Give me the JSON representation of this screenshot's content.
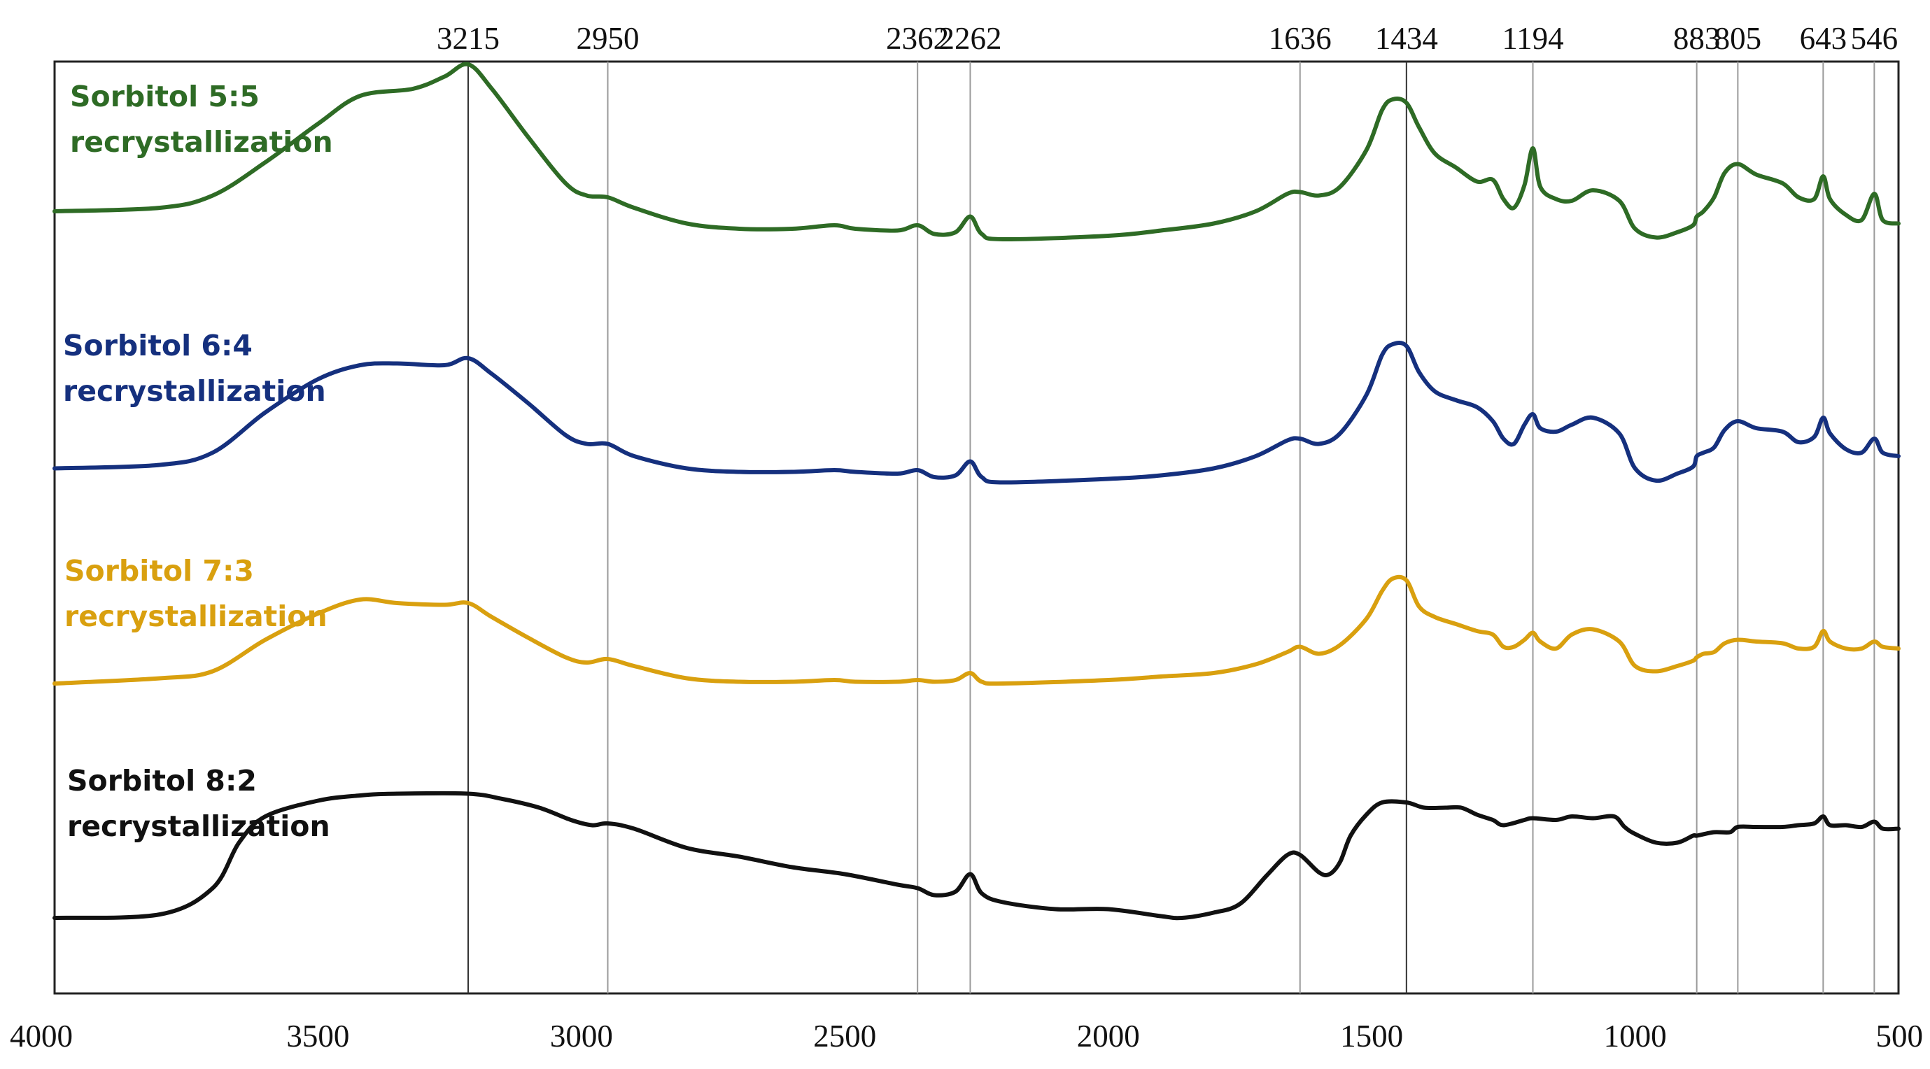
{
  "chart_data": {
    "type": "line",
    "title": "",
    "xlabel": "",
    "ylabel": "",
    "x_reversed": true,
    "xlim": [
      4000,
      500
    ],
    "x_ticks": [
      4000,
      3500,
      3000,
      2500,
      2000,
      1500,
      1000,
      500
    ],
    "y_ticks": [],
    "grid": false,
    "legend": "inline labels at left of each trace",
    "peak_lines": [
      3215,
      2950,
      2362,
      2262,
      1636,
      1434,
      1194,
      883,
      805,
      643,
      546
    ],
    "peak_labels": [
      "3215",
      "2950",
      "2362",
      "2262",
      "1636",
      "1434",
      "1194",
      "883",
      "805",
      "643",
      "546"
    ],
    "series": [
      {
        "name": "Sorbitol 5:5 recrystallization",
        "label_lines": [
          "Sorbitol 5:5",
          "recrystallization"
        ],
        "color": "#2e6b25",
        "points": [
          [
            4000,
            20
          ],
          [
            3800,
            22
          ],
          [
            3700,
            29
          ],
          [
            3600,
            48
          ],
          [
            3500,
            70
          ],
          [
            3420,
            86
          ],
          [
            3320,
            90
          ],
          [
            3260,
            97
          ],
          [
            3215,
            104
          ],
          [
            3170,
            90
          ],
          [
            3100,
            62
          ],
          [
            3030,
            36
          ],
          [
            2990,
            29
          ],
          [
            2950,
            28
          ],
          [
            2900,
            22
          ],
          [
            2800,
            13
          ],
          [
            2700,
            10
          ],
          [
            2600,
            10
          ],
          [
            2520,
            12
          ],
          [
            2480,
            10
          ],
          [
            2400,
            9
          ],
          [
            2362,
            12
          ],
          [
            2330,
            7
          ],
          [
            2290,
            8
          ],
          [
            2262,
            17
          ],
          [
            2240,
            7
          ],
          [
            2200,
            4
          ],
          [
            2000,
            6
          ],
          [
            1900,
            9
          ],
          [
            1800,
            13
          ],
          [
            1720,
            20
          ],
          [
            1660,
            30
          ],
          [
            1636,
            31
          ],
          [
            1600,
            29
          ],
          [
            1560,
            34
          ],
          [
            1510,
            55
          ],
          [
            1480,
            78
          ],
          [
            1460,
            84
          ],
          [
            1434,
            82
          ],
          [
            1410,
            68
          ],
          [
            1380,
            53
          ],
          [
            1340,
            45
          ],
          [
            1300,
            37
          ],
          [
            1270,
            38
          ],
          [
            1250,
            27
          ],
          [
            1230,
            22
          ],
          [
            1210,
            35
          ],
          [
            1194,
            56
          ],
          [
            1180,
            34
          ],
          [
            1150,
            27
          ],
          [
            1120,
            26
          ],
          [
            1080,
            32
          ],
          [
            1030,
            26
          ],
          [
            1000,
            10
          ],
          [
            960,
            5
          ],
          [
            920,
            8
          ],
          [
            890,
            12
          ],
          [
            883,
            17
          ],
          [
            870,
            20
          ],
          [
            850,
            28
          ],
          [
            830,
            42
          ],
          [
            805,
            47
          ],
          [
            770,
            41
          ],
          [
            720,
            36
          ],
          [
            690,
            28
          ],
          [
            660,
            27
          ],
          [
            643,
            40
          ],
          [
            630,
            27
          ],
          [
            600,
            18
          ],
          [
            570,
            15
          ],
          [
            546,
            30
          ],
          [
            530,
            15
          ],
          [
            500,
            13
          ]
        ]
      },
      {
        "name": "Sorbitol 6:4 recrystallization",
        "label_lines": [
          "Sorbitol 6:4",
          "recrystallization"
        ],
        "color": "#15307e",
        "points": [
          [
            4000,
            13
          ],
          [
            3800,
            15
          ],
          [
            3700,
            22
          ],
          [
            3600,
            45
          ],
          [
            3500,
            64
          ],
          [
            3420,
            72
          ],
          [
            3350,
            73
          ],
          [
            3260,
            72
          ],
          [
            3215,
            76
          ],
          [
            3170,
            67
          ],
          [
            3100,
            50
          ],
          [
            3030,
            32
          ],
          [
            2990,
            27
          ],
          [
            2950,
            27
          ],
          [
            2900,
            20
          ],
          [
            2800,
            13
          ],
          [
            2700,
            11
          ],
          [
            2600,
            11
          ],
          [
            2520,
            12
          ],
          [
            2480,
            11
          ],
          [
            2400,
            10
          ],
          [
            2362,
            12
          ],
          [
            2330,
            8
          ],
          [
            2290,
            9
          ],
          [
            2262,
            17
          ],
          [
            2240,
            8
          ],
          [
            2200,
            5
          ],
          [
            2000,
            7
          ],
          [
            1900,
            9
          ],
          [
            1800,
            13
          ],
          [
            1720,
            20
          ],
          [
            1660,
            29
          ],
          [
            1636,
            30
          ],
          [
            1600,
            27
          ],
          [
            1560,
            33
          ],
          [
            1510,
            55
          ],
          [
            1480,
            78
          ],
          [
            1460,
            84
          ],
          [
            1434,
            83
          ],
          [
            1410,
            68
          ],
          [
            1380,
            57
          ],
          [
            1340,
            52
          ],
          [
            1300,
            48
          ],
          [
            1270,
            40
          ],
          [
            1250,
            30
          ],
          [
            1230,
            27
          ],
          [
            1210,
            38
          ],
          [
            1194,
            44
          ],
          [
            1180,
            36
          ],
          [
            1150,
            34
          ],
          [
            1120,
            38
          ],
          [
            1080,
            42
          ],
          [
            1030,
            33
          ],
          [
            1000,
            13
          ],
          [
            960,
            6
          ],
          [
            920,
            10
          ],
          [
            890,
            14
          ],
          [
            883,
            20
          ],
          [
            870,
            22
          ],
          [
            850,
            25
          ],
          [
            830,
            35
          ],
          [
            805,
            40
          ],
          [
            770,
            36
          ],
          [
            720,
            34
          ],
          [
            690,
            28
          ],
          [
            660,
            31
          ],
          [
            643,
            42
          ],
          [
            630,
            33
          ],
          [
            600,
            24
          ],
          [
            570,
            22
          ],
          [
            546,
            30
          ],
          [
            530,
            22
          ],
          [
            500,
            20
          ]
        ]
      },
      {
        "name": "Sorbitol 7:3 recrystallization",
        "label_lines": [
          "Sorbitol 7:3",
          "recrystallization"
        ],
        "color": "#d9a00f",
        "points": [
          [
            4000,
            10
          ],
          [
            3800,
            13
          ],
          [
            3700,
            17
          ],
          [
            3600,
            35
          ],
          [
            3500,
            50
          ],
          [
            3420,
            58
          ],
          [
            3350,
            56
          ],
          [
            3260,
            55
          ],
          [
            3215,
            56
          ],
          [
            3170,
            48
          ],
          [
            3100,
            36
          ],
          [
            3030,
            25
          ],
          [
            2990,
            22
          ],
          [
            2950,
            24
          ],
          [
            2900,
            20
          ],
          [
            2800,
            13
          ],
          [
            2700,
            11
          ],
          [
            2600,
            11
          ],
          [
            2520,
            12
          ],
          [
            2480,
            11
          ],
          [
            2400,
            11
          ],
          [
            2362,
            12
          ],
          [
            2330,
            11
          ],
          [
            2290,
            12
          ],
          [
            2262,
            16
          ],
          [
            2240,
            11
          ],
          [
            2200,
            10
          ],
          [
            2000,
            12
          ],
          [
            1900,
            14
          ],
          [
            1800,
            16
          ],
          [
            1720,
            21
          ],
          [
            1660,
            28
          ],
          [
            1636,
            31
          ],
          [
            1600,
            27
          ],
          [
            1560,
            32
          ],
          [
            1510,
            47
          ],
          [
            1480,
            63
          ],
          [
            1460,
            70
          ],
          [
            1434,
            69
          ],
          [
            1410,
            54
          ],
          [
            1380,
            48
          ],
          [
            1340,
            44
          ],
          [
            1300,
            40
          ],
          [
            1270,
            38
          ],
          [
            1250,
            31
          ],
          [
            1230,
            31
          ],
          [
            1210,
            35
          ],
          [
            1194,
            39
          ],
          [
            1180,
            34
          ],
          [
            1150,
            30
          ],
          [
            1120,
            38
          ],
          [
            1080,
            41
          ],
          [
            1030,
            34
          ],
          [
            1000,
            20
          ],
          [
            960,
            17
          ],
          [
            920,
            20
          ],
          [
            890,
            23
          ],
          [
            883,
            25
          ],
          [
            870,
            27
          ],
          [
            850,
            28
          ],
          [
            830,
            33
          ],
          [
            805,
            35
          ],
          [
            770,
            34
          ],
          [
            720,
            33
          ],
          [
            690,
            30
          ],
          [
            660,
            31
          ],
          [
            643,
            40
          ],
          [
            630,
            34
          ],
          [
            600,
            30
          ],
          [
            570,
            30
          ],
          [
            546,
            34
          ],
          [
            530,
            31
          ],
          [
            500,
            30
          ]
        ]
      },
      {
        "name": "Sorbitol 8:2 recrystallization",
        "label_lines": [
          "Sorbitol 8:2",
          "recrystallization"
        ],
        "color": "#111111",
        "points": [
          [
            4000,
            8
          ],
          [
            3800,
            10
          ],
          [
            3700,
            25
          ],
          [
            3650,
            51
          ],
          [
            3600,
            66
          ],
          [
            3500,
            75
          ],
          [
            3420,
            78
          ],
          [
            3350,
            79
          ],
          [
            3215,
            79
          ],
          [
            3150,
            76
          ],
          [
            3080,
            71
          ],
          [
            3020,
            64
          ],
          [
            2980,
            61
          ],
          [
            2950,
            62
          ],
          [
            2900,
            59
          ],
          [
            2800,
            48
          ],
          [
            2700,
            43
          ],
          [
            2600,
            37
          ],
          [
            2500,
            33
          ],
          [
            2400,
            27
          ],
          [
            2362,
            25
          ],
          [
            2330,
            21
          ],
          [
            2290,
            23
          ],
          [
            2262,
            33
          ],
          [
            2240,
            22
          ],
          [
            2200,
            17
          ],
          [
            2100,
            13
          ],
          [
            2000,
            13
          ],
          [
            1900,
            9
          ],
          [
            1860,
            8
          ],
          [
            1800,
            11
          ],
          [
            1750,
            16
          ],
          [
            1700,
            32
          ],
          [
            1660,
            44
          ],
          [
            1636,
            44
          ],
          [
            1600,
            34
          ],
          [
            1580,
            33
          ],
          [
            1560,
            40
          ],
          [
            1540,
            55
          ],
          [
            1510,
            67
          ],
          [
            1480,
            74
          ],
          [
            1434,
            74
          ],
          [
            1400,
            71
          ],
          [
            1360,
            71
          ],
          [
            1330,
            71
          ],
          [
            1300,
            67
          ],
          [
            1270,
            64
          ],
          [
            1250,
            61
          ],
          [
            1210,
            64
          ],
          [
            1194,
            65
          ],
          [
            1150,
            64
          ],
          [
            1120,
            66
          ],
          [
            1080,
            65
          ],
          [
            1040,
            66
          ],
          [
            1020,
            60
          ],
          [
            1000,
            56
          ],
          [
            960,
            51
          ],
          [
            920,
            51
          ],
          [
            890,
            55
          ],
          [
            883,
            55
          ],
          [
            850,
            57
          ],
          [
            820,
            57
          ],
          [
            805,
            60
          ],
          [
            770,
            60
          ],
          [
            720,
            60
          ],
          [
            690,
            61
          ],
          [
            660,
            62
          ],
          [
            643,
            66
          ],
          [
            630,
            61
          ],
          [
            600,
            61
          ],
          [
            570,
            60
          ],
          [
            546,
            63
          ],
          [
            530,
            59
          ],
          [
            500,
            59
          ]
        ]
      }
    ]
  }
}
